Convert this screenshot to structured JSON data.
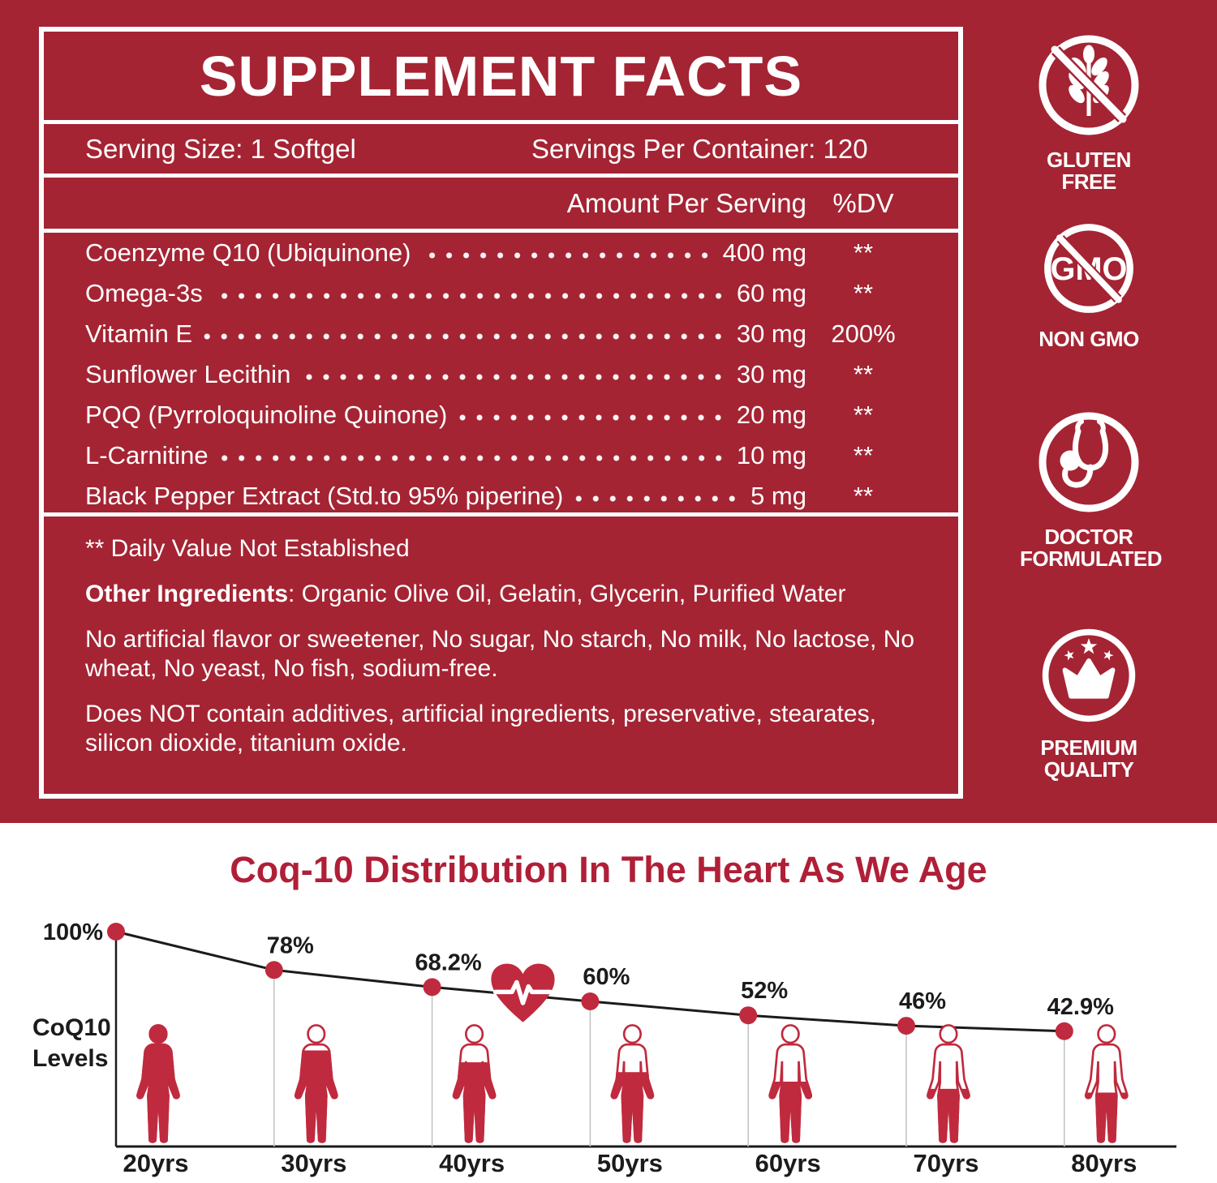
{
  "label": {
    "title": "SUPPLEMENT FACTS",
    "serving_size": "Serving Size: 1 Softgel",
    "servings_per_container": "Servings Per Container: 120",
    "amount_header": "Amount Per Serving",
    "dv_header": "%DV",
    "ingredients": [
      {
        "name": "Coenzyme Q10 (Ubiquinone)",
        "amount": "400 mg",
        "dv": "**"
      },
      {
        "name": "Omega-3s",
        "amount": "60 mg",
        "dv": "**"
      },
      {
        "name": "Vitamin E",
        "amount": "30 mg",
        "dv": "200%"
      },
      {
        "name": "Sunflower Lecithin",
        "amount": "30 mg",
        "dv": "**"
      },
      {
        "name": "PQQ (Pyrroloquinoline Quinone)",
        "amount": "20 mg",
        "dv": "**"
      },
      {
        "name": "L-Carnitine",
        "amount": "10 mg",
        "dv": "**"
      },
      {
        "name": "Black Pepper Extract (Std.to 95% piperine)",
        "amount": "5 mg",
        "dv": "**"
      }
    ],
    "footnote": "** Daily Value Not Established",
    "other_ingredients_label": "Other Ingredients",
    "other_ingredients_text": ": Organic Olive Oil, Gelatin, Glycerin, Purified Water",
    "note_allergens": "No artificial flavor or sweetener, No sugar, No starch, No milk, No lactose, No wheat, No yeast, No fish, sodium-free.",
    "note_additives": "Does NOT contain additives, artificial ingredients, preservative, stearates, silicon dioxide, titanium oxide."
  },
  "badges": [
    {
      "icon": "wheat-crossed-icon",
      "label": "GLUTEN FREE"
    },
    {
      "icon": "gmo-crossed-icon",
      "label": "NON GMO"
    },
    {
      "icon": "stethoscope-icon",
      "label": "DOCTOR\nFORMULATED"
    },
    {
      "icon": "crown-stars-icon",
      "label": "PREMIUM\nQUALITY"
    }
  ],
  "chart_data": {
    "type": "line",
    "title": "Coq-10 Distribution In The Heart As We Age",
    "ylabel": "CoQ10 Levels",
    "ylabel_lines": [
      "CoQ10",
      "Levels"
    ],
    "categories": [
      "20yrs",
      "30yrs",
      "40yrs",
      "50yrs",
      "60yrs",
      "70yrs",
      "80yrs"
    ],
    "values": [
      100,
      78,
      68.2,
      60,
      52,
      46,
      42.9
    ],
    "point_labels": [
      "100%",
      "78%",
      "68.2%",
      "60%",
      "52%",
      "46%",
      "42.9%"
    ],
    "ylim": [
      0,
      100
    ],
    "grid": false,
    "legend": "none",
    "annotations": [
      "heart-ekg-icon between 40yrs and 50yrs"
    ]
  },
  "colors": {
    "background": "#a42433",
    "accent": "#c02a3e",
    "title_red": "#b01f37",
    "ink": "#1b1b1b",
    "grid_grey": "#c4c4c4"
  }
}
